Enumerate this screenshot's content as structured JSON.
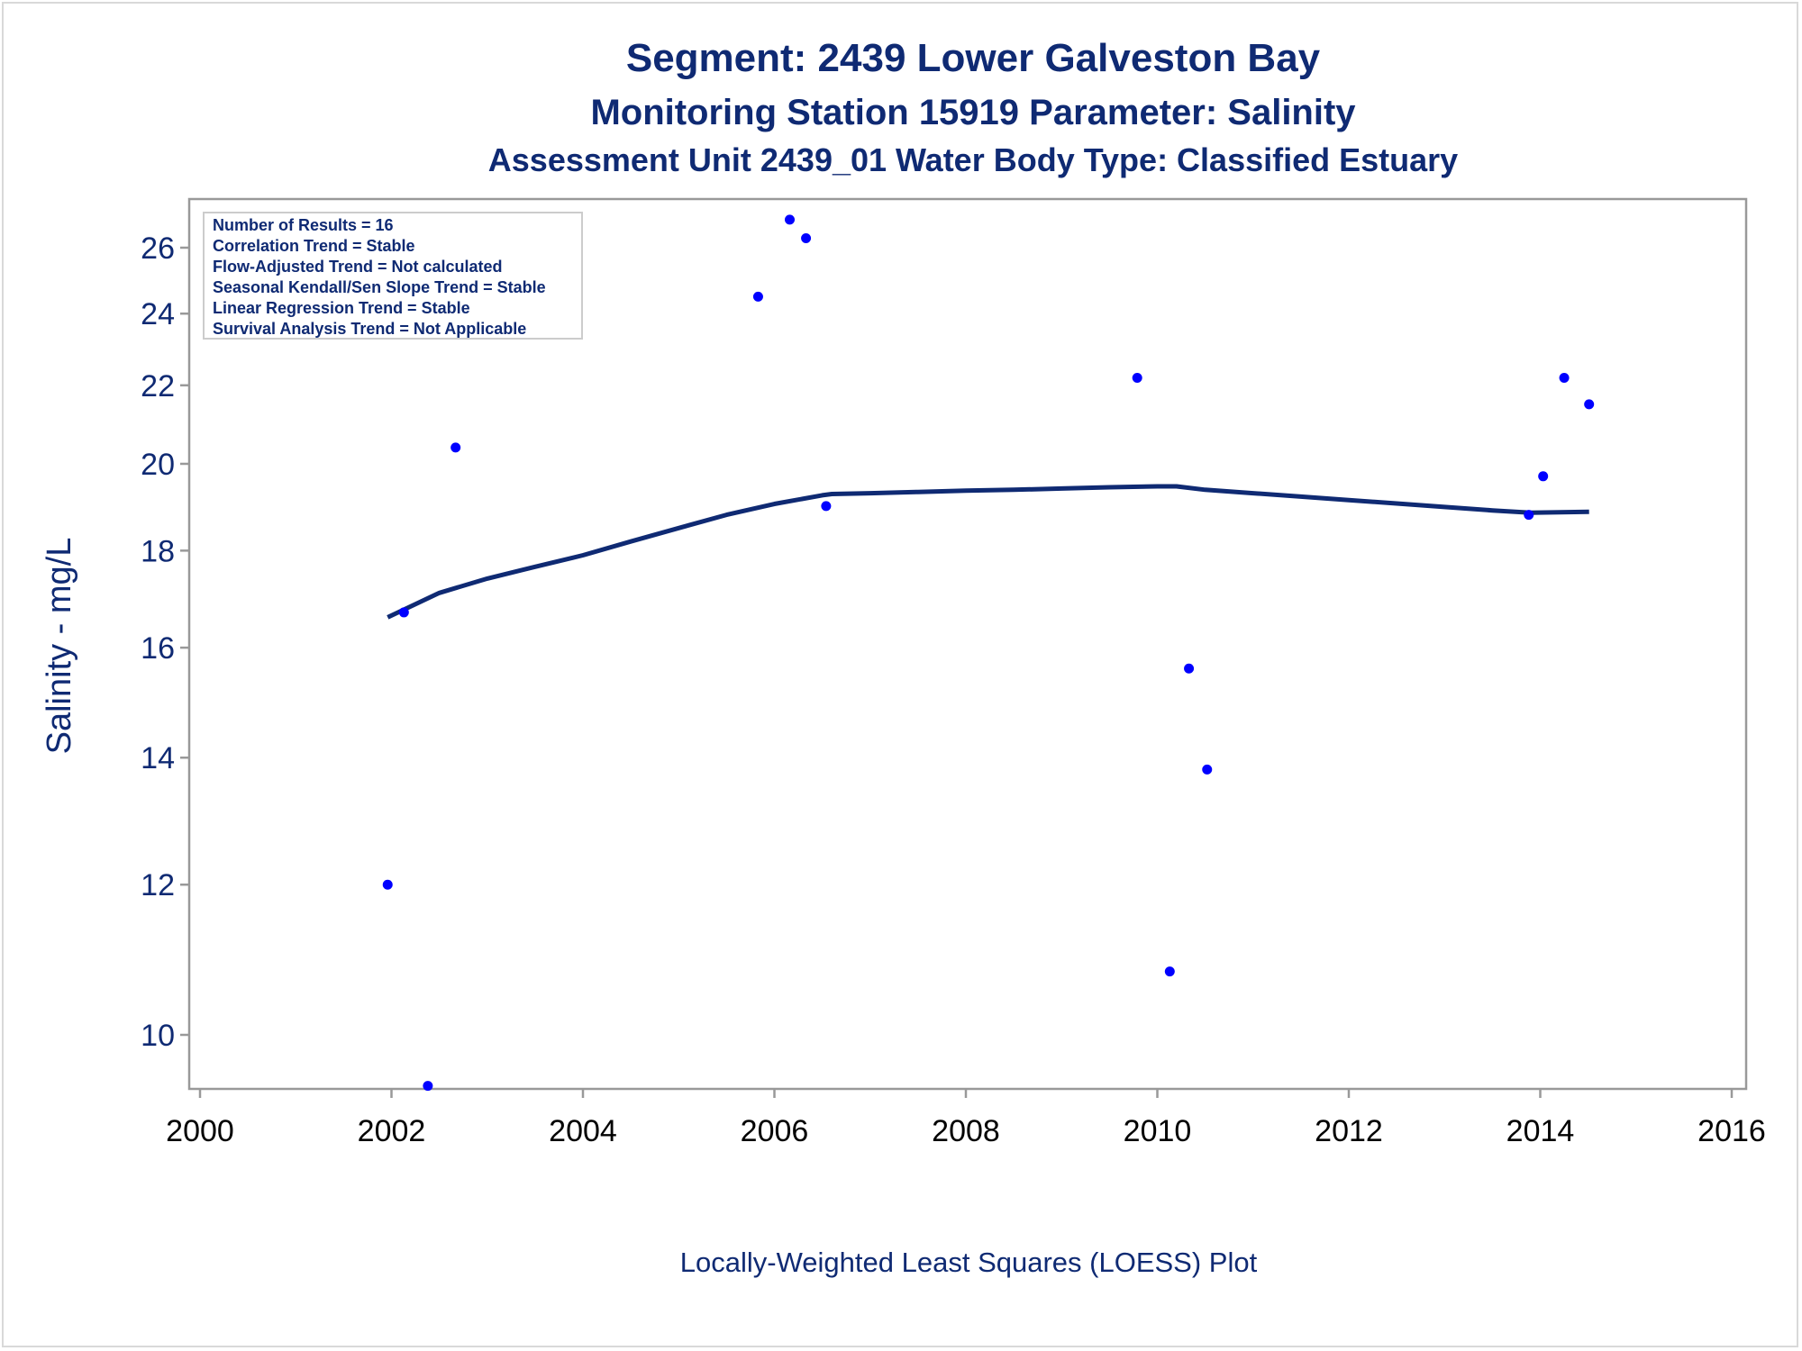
{
  "chart_data": {
    "type": "scatter",
    "title": "Segment: 2439  Lower Galveston Bay",
    "subtitle": "Monitoring Station 15919 Parameter: Salinity",
    "subtitle2": "Assessment Unit 2439_01   Water Body Type: Classified Estuary",
    "xlabel": "",
    "ylabel": "Salinity - mg/L",
    "footnote": "Locally-Weighted Least Squares (LOESS) Plot",
    "xlim": [
      2000,
      2016
    ],
    "ylim": [
      9.4,
      27.5
    ],
    "yscale": "log",
    "x_ticks": [
      2000,
      2002,
      2004,
      2006,
      2008,
      2010,
      2012,
      2014,
      2016
    ],
    "y_ticks": [
      10,
      12,
      14,
      16,
      18,
      20,
      22,
      24,
      26
    ],
    "grid": false,
    "stats_box": {
      "placement": "top-left",
      "lines": [
        "Number of Results = 16",
        "Correlation Trend = Stable",
        "Flow-Adjusted Trend = Not calculated",
        "Seasonal Kendall/Sen Slope Trend = Stable",
        "Linear Regression Trend = Stable",
        "Survival Analysis Trend = Not Applicable"
      ]
    },
    "points": {
      "color": "#0000ff",
      "x": [
        2001.96,
        2002.13,
        2002.38,
        2002.67,
        2005.83,
        2006.16,
        2006.33,
        2006.54,
        2009.79,
        2010.13,
        2010.33,
        2010.52,
        2013.88,
        2014.03,
        2014.25,
        2014.51
      ],
      "y": [
        12.0,
        16.7,
        9.4,
        20.4,
        24.5,
        26.9,
        26.3,
        19.0,
        22.2,
        10.8,
        15.6,
        13.8,
        18.8,
        19.7,
        22.2,
        21.5
      ]
    },
    "loess": {
      "color": "#0f2a73",
      "x": [
        2001.96,
        2002.5,
        2003.0,
        2003.5,
        2004.0,
        2004.5,
        2005.0,
        2005.5,
        2006.0,
        2006.5,
        2006.6,
        2007.0,
        2007.5,
        2008.0,
        2008.5,
        2009.0,
        2009.5,
        2010.0,
        2010.2,
        2010.5,
        2011.0,
        2011.5,
        2012.0,
        2012.5,
        2013.0,
        2013.5,
        2013.9,
        2014.51
      ],
      "y": [
        16.6,
        17.1,
        17.4,
        17.65,
        17.9,
        18.2,
        18.5,
        18.8,
        19.05,
        19.25,
        19.28,
        19.3,
        19.33,
        19.36,
        19.38,
        19.41,
        19.44,
        19.46,
        19.46,
        19.38,
        19.3,
        19.22,
        19.14,
        19.06,
        18.98,
        18.9,
        18.85,
        18.87
      ]
    }
  }
}
